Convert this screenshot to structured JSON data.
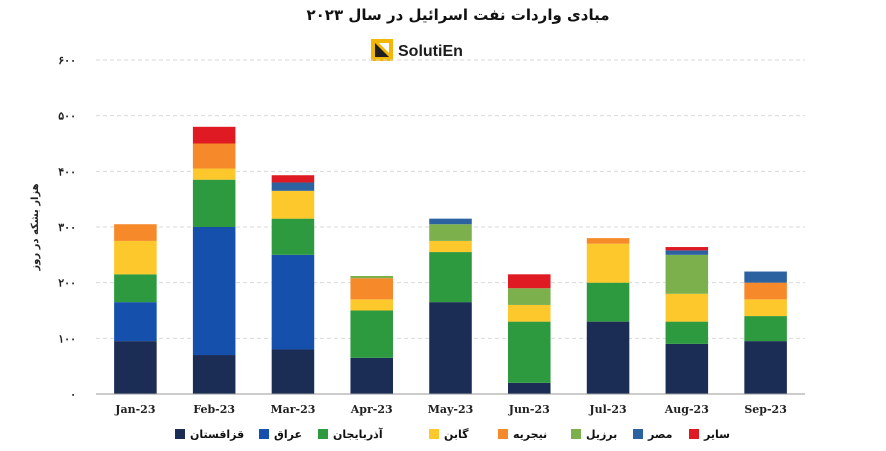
{
  "logo": {
    "text": "SolutiEn",
    "icon": "solution-logo-icon"
  },
  "chart_data": {
    "type": "bar",
    "stacked": true,
    "title": "مبادی واردات نفت اسرائیل در سال ۲۰۲۳",
    "ylabel": "هزار بشکه در روز",
    "xlabel": "",
    "ylim": [
      0,
      600
    ],
    "yticks": [
      0,
      100,
      200,
      300,
      400,
      500,
      600
    ],
    "ytick_labels": [
      "۰",
      "۱۰۰",
      "۲۰۰",
      "۳۰۰",
      "۴۰۰",
      "۵۰۰",
      "۶۰۰"
    ],
    "grid": true,
    "legend_position": "bottom",
    "categories": [
      "Jan-23",
      "Feb-23",
      "Mar-23",
      "Apr-23",
      "May-23",
      "Jun-23",
      "Jul-23",
      "Aug-23",
      "Sep-23"
    ],
    "series": [
      {
        "name": "قزاقستان",
        "color": "#1b2d55",
        "values": [
          95,
          70,
          80,
          65,
          165,
          20,
          130,
          90,
          95
        ]
      },
      {
        "name": "عراق",
        "color": "#1550ad",
        "values": [
          70,
          230,
          170,
          0,
          0,
          0,
          0,
          0,
          0
        ]
      },
      {
        "name": "آذربایجان",
        "color": "#2e9a40",
        "values": [
          50,
          85,
          65,
          85,
          90,
          110,
          70,
          40,
          45
        ]
      },
      {
        "name": "گابن",
        "color": "#fcc82b",
        "values": [
          60,
          20,
          50,
          20,
          20,
          30,
          70,
          50,
          30
        ]
      },
      {
        "name": "نیجریه",
        "color": "#f6892a",
        "values": [
          30,
          45,
          0,
          38,
          0,
          0,
          10,
          0,
          30
        ]
      },
      {
        "name": "برزیل",
        "color": "#7cb04c",
        "values": [
          0,
          0,
          0,
          4,
          30,
          30,
          0,
          70,
          0
        ]
      },
      {
        "name": "مصر",
        "color": "#2d62a0",
        "values": [
          0,
          0,
          15,
          0,
          10,
          0,
          0,
          8,
          20
        ]
      },
      {
        "name": "سایر",
        "color": "#df1a22",
        "values": [
          0,
          30,
          13,
          0,
          0,
          25,
          0,
          6,
          0
        ]
      }
    ]
  }
}
